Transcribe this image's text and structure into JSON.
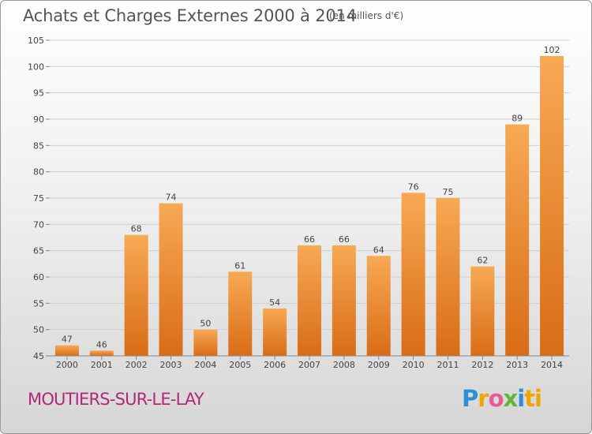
{
  "header": {
    "title": "Achats et Charges Externes 2000 à 2014",
    "unit": "(en milliers d'€)"
  },
  "footer": {
    "location": "MOUTIERS-SUR-LE-LAY",
    "brand_letters": [
      "P",
      "r",
      "o",
      "x",
      "i",
      "ti"
    ]
  },
  "colors": {
    "bar_top": "#f7a954",
    "bar_bottom": "#d96c16",
    "grid": "#cfcfcf",
    "location_text": "#b0287a"
  },
  "chart_data": {
    "type": "bar",
    "title": "Achats et Charges Externes 2000 à 2014",
    "categories": [
      "2000",
      "2001",
      "2002",
      "2003",
      "2004",
      "2005",
      "2006",
      "2007",
      "2008",
      "2009",
      "2010",
      "2011",
      "2012",
      "2013",
      "2014"
    ],
    "values": [
      47,
      46,
      68,
      74,
      50,
      61,
      54,
      66,
      66,
      64,
      76,
      75,
      62,
      89,
      102
    ],
    "ylim": [
      45,
      105
    ],
    "yticks": [
      45,
      50,
      55,
      60,
      65,
      70,
      75,
      80,
      85,
      90,
      95,
      100,
      105
    ],
    "grid": true,
    "xlabel": "",
    "ylabel": ""
  }
}
